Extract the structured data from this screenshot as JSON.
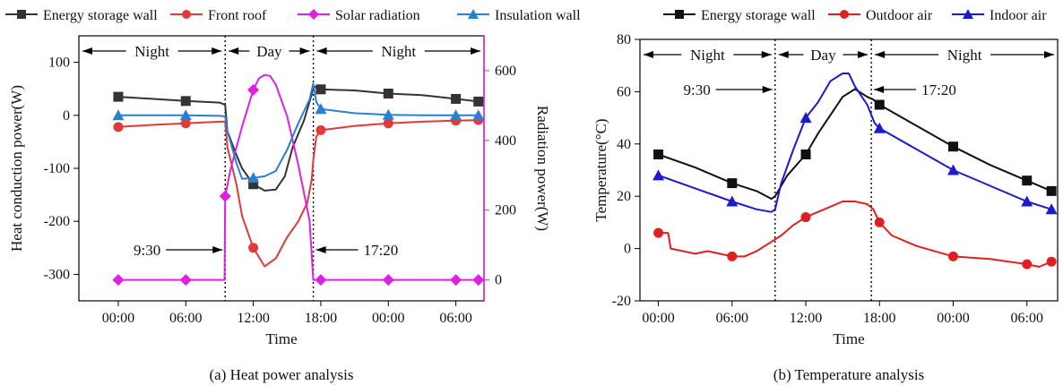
{
  "chart_data": [
    {
      "type": "line",
      "caption": "(a) Heat power analysis",
      "xlabel": "Time",
      "ylabel": "Heat conduction power(W)",
      "y2label": "Radiation power(W)",
      "x_ticks": [
        "00:00",
        "06:00",
        "12:00",
        "18:00",
        "00:00",
        "06:00"
      ],
      "x_range_hours": [
        -3.5,
        32.5
      ],
      "ylim": [
        -350,
        150
      ],
      "y_ticks": [
        100,
        0,
        -100,
        -200,
        -300
      ],
      "y2lim": [
        -60,
        700
      ],
      "y2_ticks": [
        600,
        400,
        200,
        0
      ],
      "legend": [
        "Energy storage wall",
        "Front roof",
        "Solar radiation",
        "Insulation wall"
      ],
      "periods": [
        "Night",
        "Day",
        "Night"
      ],
      "annotations": [
        "9:30",
        "17:20"
      ],
      "series": [
        {
          "name": "Energy storage wall",
          "color": "#333333",
          "marker": "square",
          "axis": "left",
          "points": [
            [
              0,
              35
            ],
            [
              3,
              31
            ],
            [
              6,
              27
            ],
            [
              9,
              24
            ],
            [
              9.5,
              20
            ],
            [
              9.7,
              -30
            ],
            [
              10.5,
              -75
            ],
            [
              11,
              -100
            ],
            [
              12,
              -130
            ],
            [
              13,
              -142
            ],
            [
              14,
              -140
            ],
            [
              14.8,
              -115
            ],
            [
              15.5,
              -60
            ],
            [
              16.5,
              -10
            ],
            [
              17.2,
              40
            ],
            [
              17.33,
              55
            ],
            [
              18,
              49
            ],
            [
              21,
              47
            ],
            [
              24,
              41
            ],
            [
              27,
              38
            ],
            [
              30,
              31
            ],
            [
              32,
              26
            ]
          ],
          "markers_x": [
            0,
            6,
            12,
            18,
            24,
            30,
            32
          ]
        },
        {
          "name": "Front roof",
          "color": "#e03a3a",
          "marker": "circle",
          "axis": "left",
          "points": [
            [
              0,
              -22
            ],
            [
              3,
              -18
            ],
            [
              6,
              -15
            ],
            [
              9,
              -12
            ],
            [
              9.5,
              -12
            ],
            [
              9.7,
              -60
            ],
            [
              10.5,
              -130
            ],
            [
              11,
              -190
            ],
            [
              12,
              -250
            ],
            [
              13,
              -285
            ],
            [
              14,
              -270
            ],
            [
              15,
              -230
            ],
            [
              16,
              -200
            ],
            [
              16.8,
              -165
            ],
            [
              17.2,
              -120
            ],
            [
              17.33,
              -85
            ],
            [
              17.6,
              -40
            ],
            [
              18,
              -28
            ],
            [
              21,
              -20
            ],
            [
              24,
              -15
            ],
            [
              27,
              -12
            ],
            [
              30,
              -10
            ],
            [
              32,
              -9
            ]
          ],
          "markers_x": [
            0,
            6,
            12,
            18,
            24,
            30,
            32
          ]
        },
        {
          "name": "Solar radiation",
          "color": "#e020e0",
          "marker": "diamond",
          "axis": "right",
          "points": [
            [
              0,
              0
            ],
            [
              6,
              0
            ],
            [
              9.45,
              0
            ],
            [
              9.5,
              240
            ],
            [
              10,
              320
            ],
            [
              11,
              440
            ],
            [
              12,
              545
            ],
            [
              12.5,
              578
            ],
            [
              13,
              588
            ],
            [
              13.5,
              585
            ],
            [
              14,
              560
            ],
            [
              15,
              470
            ],
            [
              16,
              330
            ],
            [
              17,
              170
            ],
            [
              17.33,
              0
            ],
            [
              18,
              0
            ],
            [
              24,
              0
            ],
            [
              30,
              0
            ],
            [
              32,
              0
            ]
          ],
          "markers_x": [
            0,
            6,
            9.5,
            12,
            18,
            24,
            30,
            32
          ]
        },
        {
          "name": "Insulation wall",
          "color": "#2a7fd4",
          "marker": "triangle",
          "axis": "left",
          "points": [
            [
              0,
              0
            ],
            [
              3,
              0
            ],
            [
              6,
              0
            ],
            [
              9,
              -1
            ],
            [
              9.5,
              -2
            ],
            [
              9.7,
              -30
            ],
            [
              10.5,
              -90
            ],
            [
              11,
              -120
            ],
            [
              12,
              -118
            ],
            [
              13,
              -115
            ],
            [
              14,
              -105
            ],
            [
              15,
              -65
            ],
            [
              16,
              -15
            ],
            [
              17,
              30
            ],
            [
              17.33,
              60
            ],
            [
              17.6,
              25
            ],
            [
              18,
              12
            ],
            [
              21,
              4
            ],
            [
              24,
              1
            ],
            [
              27,
              0
            ],
            [
              30,
              0
            ],
            [
              32,
              0
            ]
          ],
          "markers_x": [
            0,
            6,
            12,
            18,
            24,
            30,
            32
          ]
        }
      ]
    },
    {
      "type": "line",
      "caption": "(b) Temperature analysis",
      "xlabel": "Time",
      "ylabel": "Temperature(°C)",
      "x_ticks": [
        "00:00",
        "06:00",
        "12:00",
        "18:00",
        "00:00",
        "06:00"
      ],
      "x_range_hours": [
        -1.5,
        32.5
      ],
      "ylim": [
        -20,
        80
      ],
      "y_ticks": [
        80,
        60,
        40,
        20,
        0,
        -20
      ],
      "legend": [
        "Energy storage wall",
        "Outdoor air",
        "Indoor air"
      ],
      "periods": [
        "Night",
        "Day",
        "Night"
      ],
      "annotations": [
        "9:30",
        "17:20"
      ],
      "series": [
        {
          "name": "Energy storage wall",
          "color": "#111111",
          "marker": "square",
          "points": [
            [
              0,
              36
            ],
            [
              3,
              31
            ],
            [
              6,
              25
            ],
            [
              8,
              22
            ],
            [
              9.2,
              19
            ],
            [
              9.5,
              20
            ],
            [
              10.5,
              28
            ],
            [
              12,
              36
            ],
            [
              13,
              44
            ],
            [
              14,
              51
            ],
            [
              15,
              58
            ],
            [
              16,
              61
            ],
            [
              17,
              58
            ],
            [
              17.5,
              57
            ],
            [
              18,
              55
            ],
            [
              21,
              47
            ],
            [
              24,
              39
            ],
            [
              27,
              32
            ],
            [
              30,
              26
            ],
            [
              32,
              22
            ]
          ],
          "markers_x": [
            0,
            6,
            12,
            18,
            24,
            30,
            32
          ]
        },
        {
          "name": "Outdoor air",
          "color": "#e02020",
          "marker": "circle",
          "points": [
            [
              0,
              6
            ],
            [
              0.8,
              6
            ],
            [
              1,
              0
            ],
            [
              2,
              -1
            ],
            [
              3,
              -2
            ],
            [
              4,
              -1
            ],
            [
              5,
              -2
            ],
            [
              6,
              -3
            ],
            [
              7,
              -3
            ],
            [
              8,
              -1
            ],
            [
              9,
              2
            ],
            [
              10,
              5
            ],
            [
              11,
              9
            ],
            [
              12,
              12
            ],
            [
              13,
              14
            ],
            [
              14,
              16
            ],
            [
              15,
              18
            ],
            [
              16,
              18
            ],
            [
              17,
              17
            ],
            [
              17.5,
              15
            ],
            [
              18,
              10
            ],
            [
              19,
              5
            ],
            [
              21,
              1
            ],
            [
              24,
              -3
            ],
            [
              27,
              -4
            ],
            [
              30,
              -6
            ],
            [
              31,
              -7
            ],
            [
              32,
              -5
            ]
          ],
          "markers_x": [
            0,
            6,
            12,
            18,
            24,
            30,
            32
          ]
        },
        {
          "name": "Indoor air",
          "color": "#1a1ad0",
          "marker": "triangle",
          "points": [
            [
              0,
              28
            ],
            [
              3,
              23
            ],
            [
              6,
              18
            ],
            [
              8,
              15
            ],
            [
              9.2,
              14
            ],
            [
              9.5,
              15
            ],
            [
              10,
              25
            ],
            [
              11,
              38
            ],
            [
              12,
              50
            ],
            [
              13,
              56
            ],
            [
              14,
              64
            ],
            [
              15,
              67
            ],
            [
              15.5,
              67
            ],
            [
              16,
              62
            ],
            [
              17,
              55
            ],
            [
              17.6,
              48
            ],
            [
              18,
              46
            ],
            [
              21,
              38
            ],
            [
              24,
              30
            ],
            [
              27,
              24
            ],
            [
              30,
              18
            ],
            [
              32,
              15
            ]
          ],
          "markers_x": [
            0,
            6,
            12,
            18,
            24,
            30,
            32
          ]
        }
      ]
    }
  ]
}
